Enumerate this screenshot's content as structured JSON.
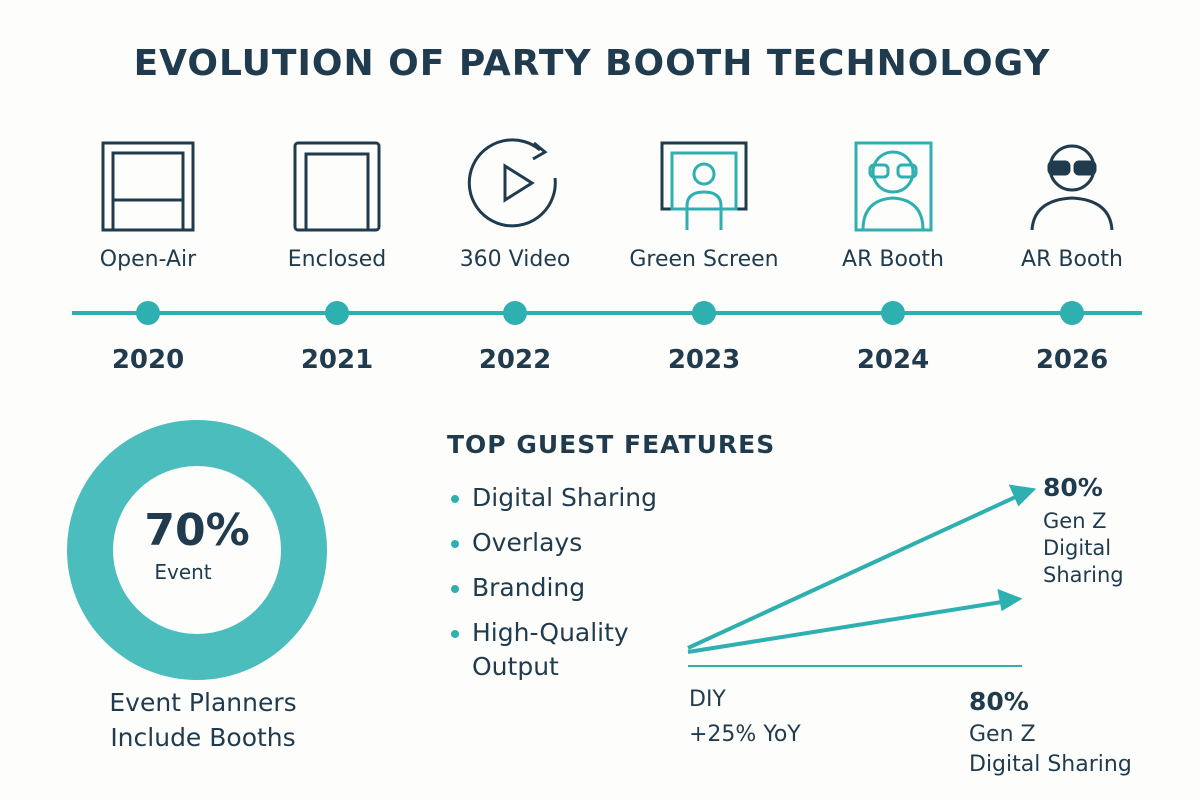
{
  "title": "EVOLUTION OF PARTY BOOTH TECHNOLOGY",
  "timeline": [
    {
      "label": "Open-Air",
      "year": "2020"
    },
    {
      "label": "Enclosed",
      "year": "2021"
    },
    {
      "label": "360 Video",
      "year": "2022"
    },
    {
      "label": "Green Screen",
      "year": "2023"
    },
    {
      "label": "AR Booth",
      "year": "2024"
    },
    {
      "label": "AR Booth",
      "year": "2026"
    }
  ],
  "stat": {
    "value": "70%",
    "caption": "Event",
    "label": [
      "Event Planners",
      "Include Booths"
    ]
  },
  "features": {
    "title": "TOP GUEST FEATURES",
    "items": [
      [
        "Digital Sharing"
      ],
      [
        "Overlays"
      ],
      [
        "Branding"
      ],
      [
        "High-Quality",
        "Output"
      ]
    ]
  },
  "trend": {
    "upper": {
      "value": "80%",
      "label": [
        "Gen Z",
        "Digital",
        "Sharing"
      ]
    },
    "lower_left": {
      "label": "DIY",
      "value": "+25% YoY"
    },
    "lower_right": {
      "value": "80%",
      "label": [
        "Gen Z",
        "Digital Sharing"
      ]
    }
  }
}
